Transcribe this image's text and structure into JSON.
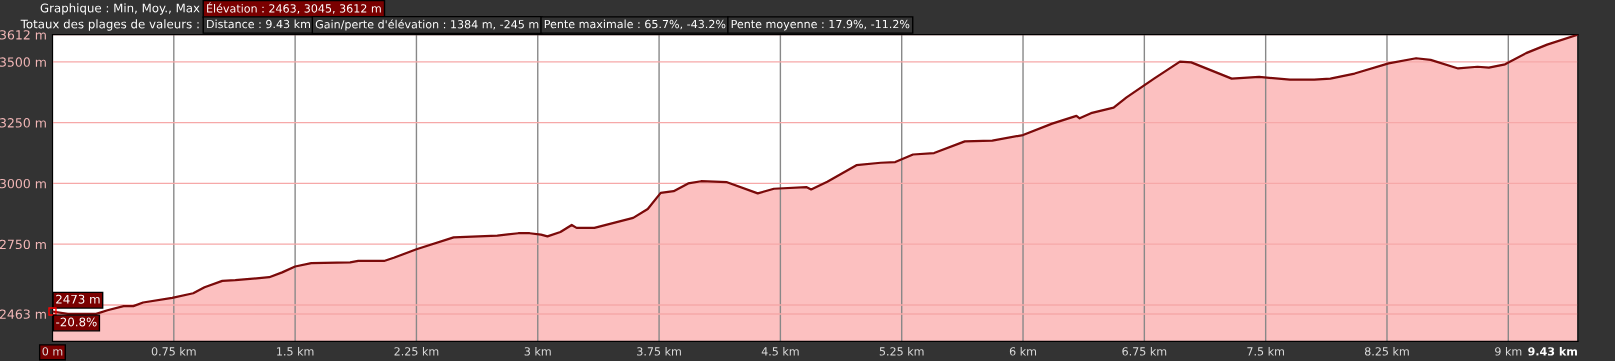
{
  "chart_data": {
    "type": "area",
    "title": "Graphique : Min, Moy., Max",
    "subtitle": "Totaux des plages de valeurs :",
    "annotations": [
      "Élévation : 2463, 3045, 3612 m",
      "Distance : 9.43 km",
      "Gain/perte d'élévation : 1384 m, -245 m",
      "Pente maximale : 65.7%, -43.2%",
      "Pente moyenne : 17.9%, -11.2%",
      {
        "text": "2473 m",
        "x": 0,
        "y": 2473
      },
      "-20.8%"
    ],
    "x": [
      0,
      0.095,
      0.27,
      0.34,
      0.44,
      0.5,
      0.56,
      0.74,
      0.87,
      0.94,
      1.05,
      1.13,
      1.34,
      1.42,
      1.5,
      1.6,
      1.84,
      1.89,
      2.05,
      2.11,
      2.25,
      2.48,
      2.75,
      2.88,
      2.95,
      3.02,
      3.06,
      3.14,
      3.21,
      3.24,
      3.35,
      3.59,
      3.68,
      3.76,
      3.84,
      3.93,
      4.01,
      4.17,
      4.36,
      4.46,
      4.66,
      4.69,
      4.79,
      4.97,
      5.12,
      5.21,
      5.32,
      5.45,
      5.64,
      5.81,
      6.0,
      6.18,
      6.33,
      6.35,
      6.42,
      6.56,
      6.64,
      6.81,
      6.97,
      7.04,
      7.29,
      7.46,
      7.65,
      7.8,
      7.9,
      8.05,
      8.26,
      8.43,
      8.52,
      8.69,
      8.81,
      8.88,
      8.98,
      9.11,
      9.24,
      9.43
    ],
    "series": [
      {
        "color": "#7a0a0a",
        "values": [
          2473,
          2463,
          2463,
          2478,
          2495,
          2495,
          2510,
          2529,
          2548,
          2573,
          2599,
          2602,
          2614,
          2634,
          2658,
          2672,
          2675,
          2681,
          2681,
          2694,
          2729,
          2778,
          2785,
          2795,
          2795,
          2789,
          2782,
          2800,
          2829,
          2817,
          2817,
          2858,
          2895,
          2961,
          2968,
          3000,
          3009,
          3005,
          2959,
          2978,
          2985,
          2975,
          3007,
          3075,
          3085,
          3088,
          3119,
          3125,
          3173,
          3176,
          3199,
          3246,
          3278,
          3268,
          3289,
          3312,
          3354,
          3431,
          3501,
          3498,
          3431,
          3438,
          3427,
          3427,
          3431,
          3452,
          3494,
          3515,
          3508,
          3473,
          3480,
          3476,
          3490,
          3536,
          3571,
          3612
        ]
      }
    ],
    "xlim": [
      0,
      9.43
    ],
    "ylim": [
      2350,
      3612
    ],
    "xticks": [
      {
        "value": 0,
        "label": "0 m"
      },
      {
        "value": 0.75,
        "label": "0.75 km"
      },
      {
        "value": 1.5,
        "label": "1.5 km"
      },
      {
        "value": 2.25,
        "label": "2.25 km"
      },
      {
        "value": 3,
        "label": "3 km"
      },
      {
        "value": 3.75,
        "label": "3.75 km"
      },
      {
        "value": 4.5,
        "label": "4.5 km"
      },
      {
        "value": 5.25,
        "label": "5.25 km"
      },
      {
        "value": 6,
        "label": "6 km"
      },
      {
        "value": 6.75,
        "label": "6.75 km"
      },
      {
        "value": 7.5,
        "label": "7.5 km"
      },
      {
        "value": 8.25,
        "label": "8.25 km"
      },
      {
        "value": 9,
        "label": "9 km"
      },
      {
        "value": 9.43,
        "label": "9.43 km"
      }
    ],
    "yticks": [
      {
        "value": 2463,
        "label": "2463 m"
      },
      {
        "value": 2500,
        "label": null
      },
      {
        "value": 2750,
        "label": "2750 m"
      },
      {
        "value": 3000,
        "label": "3000 m"
      },
      {
        "value": 3250,
        "label": "3250 m"
      },
      {
        "value": 3500,
        "label": "3500 m"
      },
      {
        "value": 3612,
        "label": "3612 m"
      }
    ],
    "grid": true,
    "legend": false
  }
}
